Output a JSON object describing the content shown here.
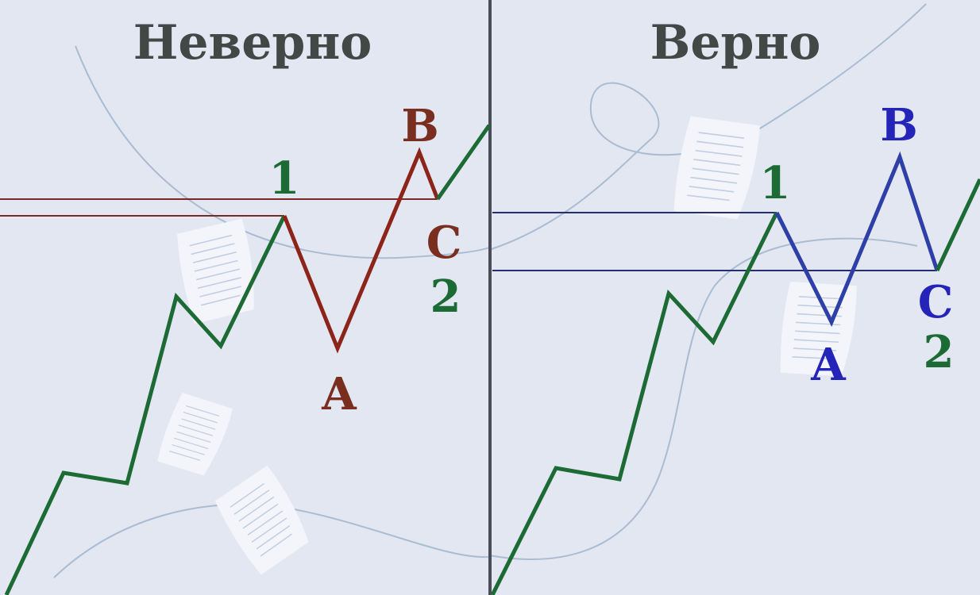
{
  "panels": {
    "wrong": {
      "title": "Неверно",
      "wave_labels": {
        "w1": "1",
        "w2": "2",
        "a": "A",
        "b": "B",
        "c": "C"
      }
    },
    "right": {
      "title": "Верно",
      "wave_labels": {
        "w1": "1",
        "w2": "2",
        "a": "A",
        "b": "B",
        "c": "C"
      }
    }
  },
  "colors": {
    "background": "#e3e7f2",
    "divider": "#4a4d57",
    "title": "#434746",
    "impulse": "#1c6b34",
    "wrong_correction": "#8c2419",
    "wrong_correction_label": "#7a2e1f",
    "right_correction": "#2f3fa8",
    "right_correction_label": "#2424b8",
    "wrong_guides": "#7a2a22",
    "right_guides": "#24306e",
    "decor_curve": "#a9bcd2",
    "paper": "#f3f5fb",
    "paper_lines": "#c2cde2"
  },
  "icons": {
    "decor": "paper-sheet-icon"
  }
}
